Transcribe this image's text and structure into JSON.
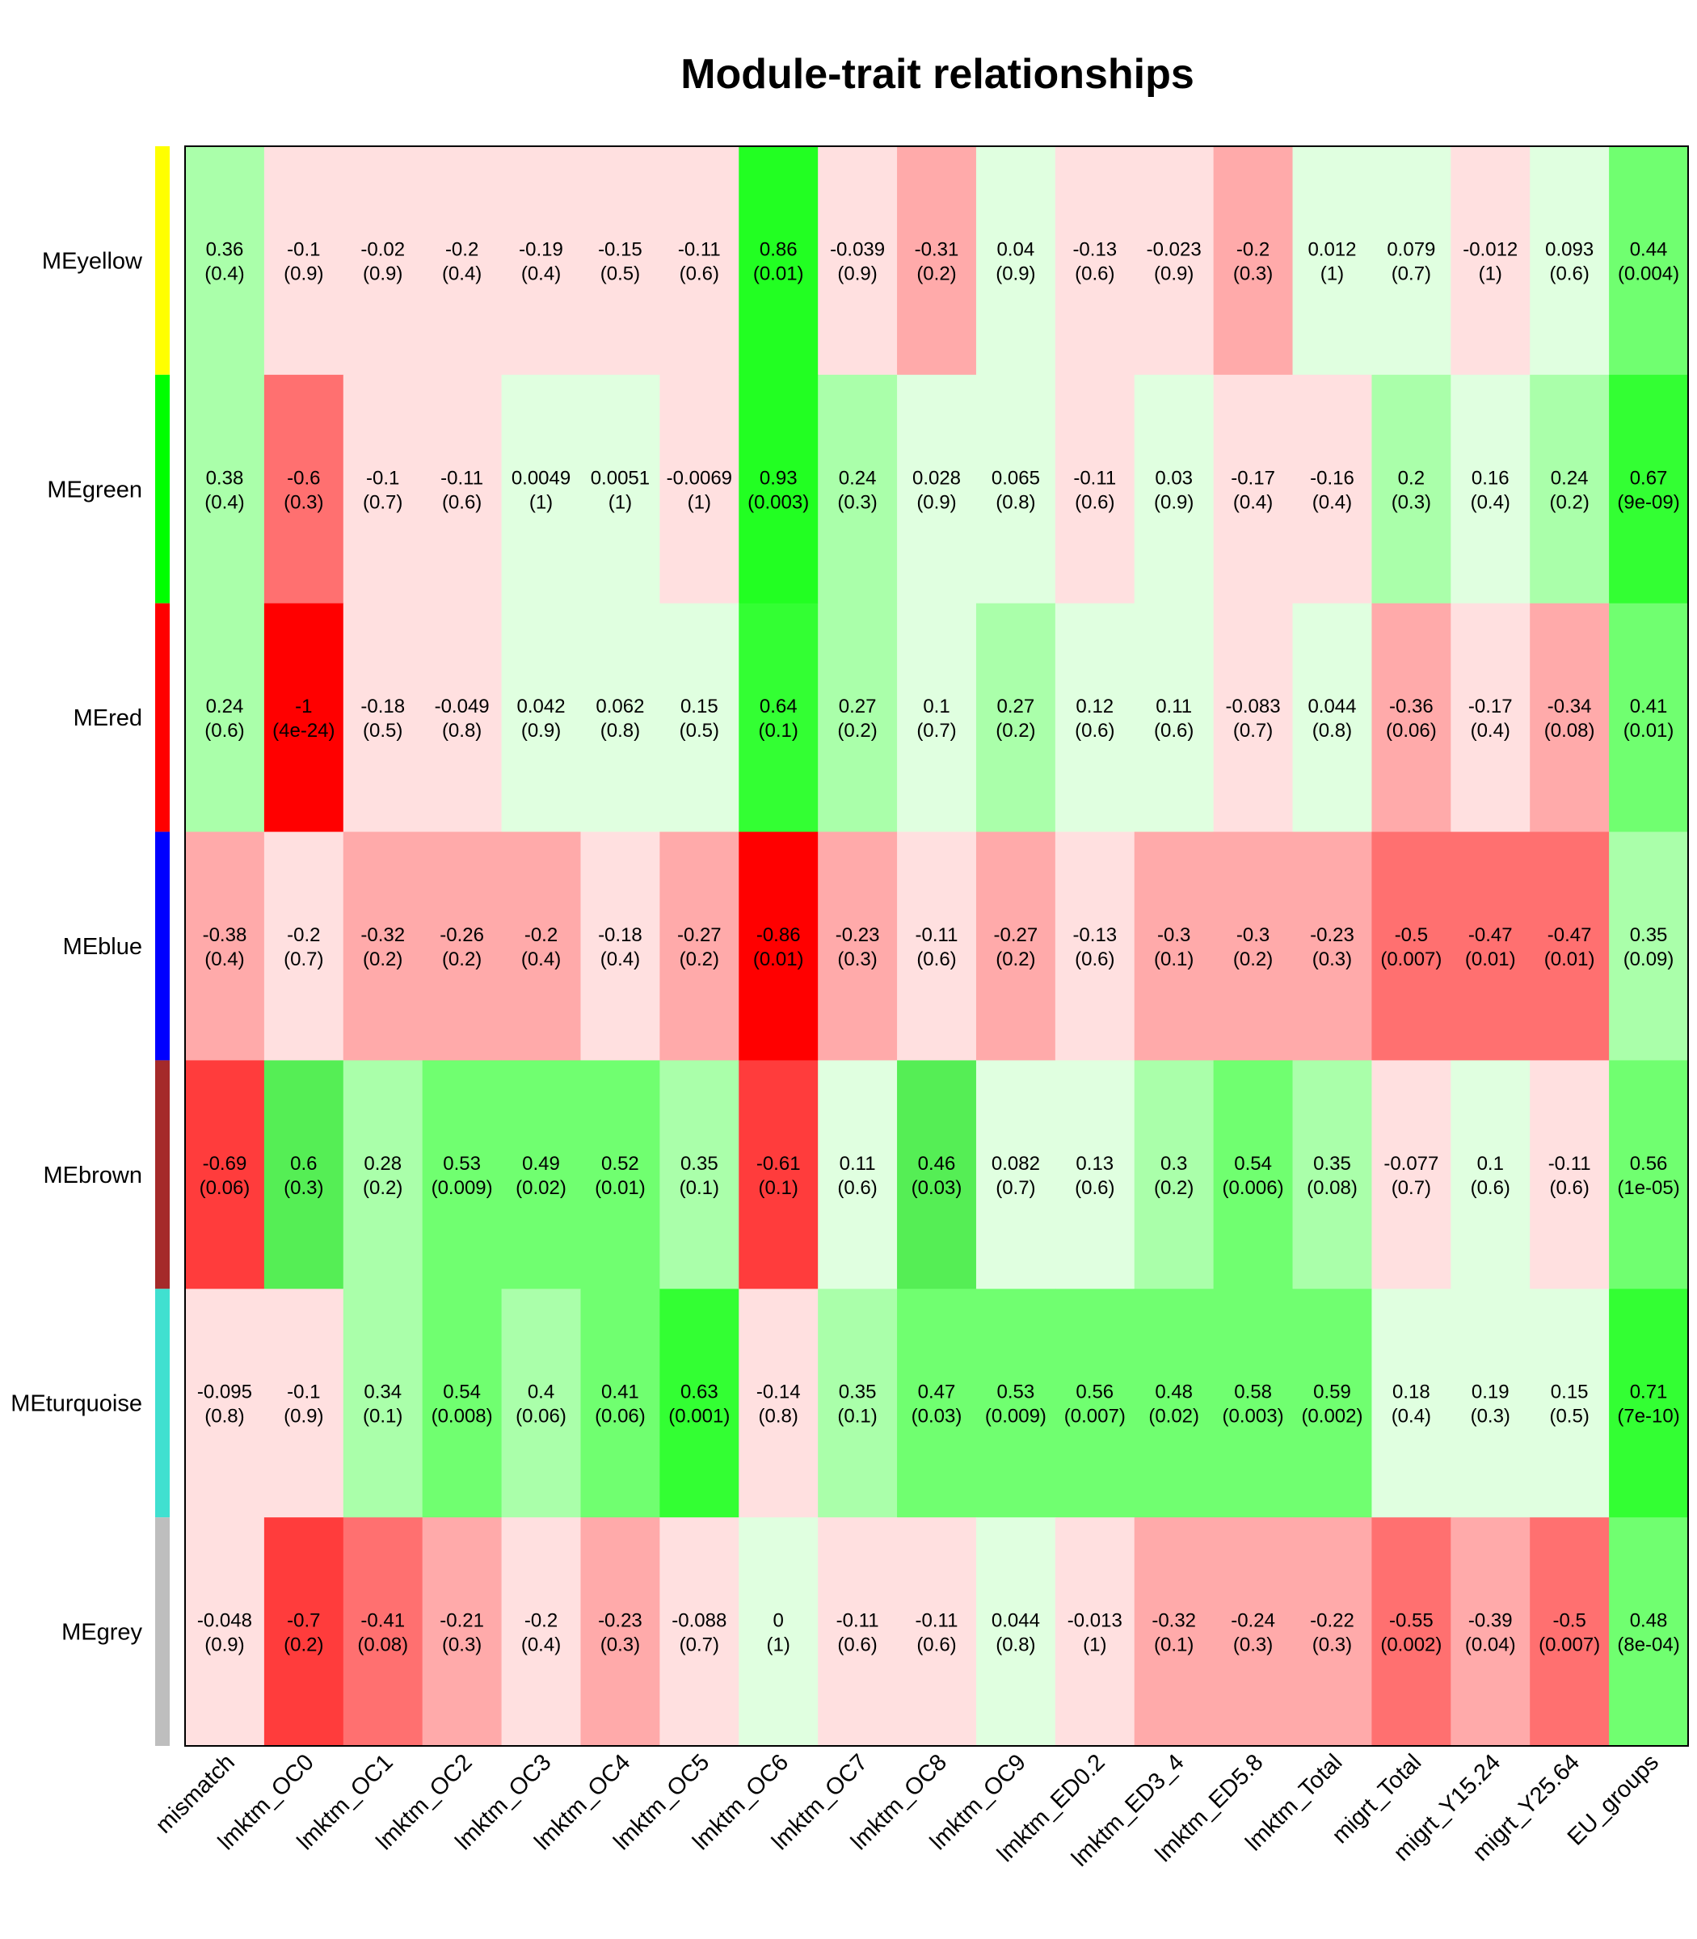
{
  "chart_data": {
    "type": "heatmap",
    "title": "Module-trait relationships",
    "xlabel": "",
    "ylabel": "",
    "columns": [
      "mismatch",
      "lmktm_OC0",
      "lmktm_OC1",
      "lmktm_OC2",
      "lmktm_OC3",
      "lmktm_OC4",
      "lmktm_OC5",
      "lmktm_OC6",
      "lmktm_OC7",
      "lmktm_OC8",
      "lmktm_OC9",
      "lmktm_ED0.2",
      "lmktm_ED3_4",
      "lmktm_ED5.8",
      "lmktm_Total",
      "migrt_Total",
      "migrt_Y15.24",
      "migrt_Y25.64",
      "EU_groups"
    ],
    "rows": [
      {
        "name": "MEyellow",
        "module_color": "#ffff00",
        "values": [
          "0.36",
          "-0.1",
          "-0.02",
          "-0.2",
          "-0.19",
          "-0.15",
          "-0.11",
          "0.86",
          "-0.039",
          "-0.31",
          "0.04",
          "-0.13",
          "-0.023",
          "-0.2",
          "0.012",
          "0.079",
          "-0.012",
          "0.093",
          "0.44"
        ],
        "pvalues": [
          "(0.4)",
          "(0.9)",
          "(0.9)",
          "(0.4)",
          "(0.4)",
          "(0.5)",
          "(0.6)",
          "(0.01)",
          "(0.9)",
          "(0.2)",
          "(0.9)",
          "(0.6)",
          "(0.9)",
          "(0.3)",
          "(1)",
          "(0.7)",
          "(1)",
          "(0.6)",
          "(0.004)"
        ],
        "fills": [
          "#aaffaa",
          "#ffe0e0",
          "#ffe0e0",
          "#ffe0e0",
          "#ffe0e0",
          "#ffe0e0",
          "#ffe0e0",
          "#22ff22",
          "#ffe0e0",
          "#ffaaaa",
          "#e0ffe0",
          "#ffe0e0",
          "#ffe0e0",
          "#ffaaaa",
          "#e0ffe0",
          "#e0ffe0",
          "#ffe0e0",
          "#e0ffe0",
          "#70ff70"
        ]
      },
      {
        "name": "MEgreen",
        "module_color": "#00ff00",
        "values": [
          "0.38",
          "-0.6",
          "-0.1",
          "-0.11",
          "0.0049",
          "0.0051",
          "-0.0069",
          "0.93",
          "0.24",
          "0.028",
          "0.065",
          "-0.11",
          "0.03",
          "-0.17",
          "-0.16",
          "0.2",
          "0.16",
          "0.24",
          "0.67"
        ],
        "pvalues": [
          "(0.4)",
          "(0.3)",
          "(0.7)",
          "(0.6)",
          "(1)",
          "(1)",
          "(1)",
          "(0.003)",
          "(0.3)",
          "(0.9)",
          "(0.8)",
          "(0.6)",
          "(0.9)",
          "(0.4)",
          "(0.4)",
          "(0.3)",
          "(0.4)",
          "(0.2)",
          "(9e-09)"
        ],
        "fills": [
          "#aaffaa",
          "#ff7070",
          "#ffe0e0",
          "#ffe0e0",
          "#e0ffe0",
          "#e0ffe0",
          "#ffe0e0",
          "#22ff22",
          "#aaffaa",
          "#e0ffe0",
          "#e0ffe0",
          "#ffe0e0",
          "#e0ffe0",
          "#ffe0e0",
          "#ffe0e0",
          "#aaffaa",
          "#e0ffe0",
          "#aaffaa",
          "#33ff33"
        ]
      },
      {
        "name": "MEred",
        "module_color": "#ff0000",
        "values": [
          "0.24",
          "-1",
          "-0.18",
          "-0.049",
          "0.042",
          "0.062",
          "0.15",
          "0.64",
          "0.27",
          "0.1",
          "0.27",
          "0.12",
          "0.11",
          "-0.083",
          "0.044",
          "-0.36",
          "-0.17",
          "-0.34",
          "0.41"
        ],
        "pvalues": [
          "(0.6)",
          "(4e-24)",
          "(0.5)",
          "(0.8)",
          "(0.9)",
          "(0.8)",
          "(0.5)",
          "(0.1)",
          "(0.2)",
          "(0.7)",
          "(0.2)",
          "(0.6)",
          "(0.6)",
          "(0.7)",
          "(0.8)",
          "(0.06)",
          "(0.4)",
          "(0.08)",
          "(0.01)"
        ],
        "fills": [
          "#aaffaa",
          "#ff0000",
          "#ffe0e0",
          "#ffe0e0",
          "#e0ffe0",
          "#e0ffe0",
          "#e0ffe0",
          "#33ff33",
          "#aaffaa",
          "#e0ffe0",
          "#aaffaa",
          "#e0ffe0",
          "#e0ffe0",
          "#ffe0e0",
          "#e0ffe0",
          "#ffaaaa",
          "#ffe0e0",
          "#ffaaaa",
          "#70ff70"
        ]
      },
      {
        "name": "MEblue",
        "module_color": "#0000ff",
        "values": [
          "-0.38",
          "-0.2",
          "-0.32",
          "-0.26",
          "-0.2",
          "-0.18",
          "-0.27",
          "-0.86",
          "-0.23",
          "-0.11",
          "-0.27",
          "-0.13",
          "-0.3",
          "-0.3",
          "-0.23",
          "-0.5",
          "-0.47",
          "-0.47",
          "0.35"
        ],
        "pvalues": [
          "(0.4)",
          "(0.7)",
          "(0.2)",
          "(0.2)",
          "(0.4)",
          "(0.4)",
          "(0.2)",
          "(0.01)",
          "(0.3)",
          "(0.6)",
          "(0.2)",
          "(0.6)",
          "(0.1)",
          "(0.2)",
          "(0.3)",
          "(0.007)",
          "(0.01)",
          "(0.01)",
          "(0.09)"
        ],
        "fills": [
          "#ffaaaa",
          "#ffe0e0",
          "#ffaaaa",
          "#ffaaaa",
          "#ffaaaa",
          "#ffe0e0",
          "#ffaaaa",
          "#ff0000",
          "#ffaaaa",
          "#ffe0e0",
          "#ffaaaa",
          "#ffe0e0",
          "#ffaaaa",
          "#ffaaaa",
          "#ffaaaa",
          "#ff7070",
          "#ff7070",
          "#ff7070",
          "#aaffaa"
        ]
      },
      {
        "name": "MEbrown",
        "module_color": "#a52a2a",
        "values": [
          "-0.69",
          "0.6",
          "0.28",
          "0.53",
          "0.49",
          "0.52",
          "0.35",
          "-0.61",
          "0.11",
          "0.46",
          "0.082",
          "0.13",
          "0.3",
          "0.54",
          "0.35",
          "-0.077",
          "0.1",
          "-0.11",
          "0.56"
        ],
        "pvalues": [
          "(0.06)",
          "(0.3)",
          "(0.2)",
          "(0.009)",
          "(0.02)",
          "(0.01)",
          "(0.1)",
          "(0.1)",
          "(0.6)",
          "(0.03)",
          "(0.7)",
          "(0.6)",
          "(0.2)",
          "(0.006)",
          "(0.08)",
          "(0.7)",
          "(0.6)",
          "(0.6)",
          "(1e-05)"
        ],
        "fills": [
          "#ff3c3c",
          "#55ee55",
          "#aaffaa",
          "#70ff70",
          "#70ff70",
          "#70ff70",
          "#aaffaa",
          "#ff3c3c",
          "#e0ffe0",
          "#55ee55",
          "#e0ffe0",
          "#e0ffe0",
          "#aaffaa",
          "#70ff70",
          "#aaffaa",
          "#ffe0e0",
          "#e0ffe0",
          "#ffe0e0",
          "#70ff70"
        ]
      },
      {
        "name": "MEturquoise",
        "module_color": "#40e0d0",
        "values": [
          "-0.095",
          "-0.1",
          "0.34",
          "0.54",
          "0.4",
          "0.41",
          "0.63",
          "-0.14",
          "0.35",
          "0.47",
          "0.53",
          "0.56",
          "0.48",
          "0.58",
          "0.59",
          "0.18",
          "0.19",
          "0.15",
          "0.71"
        ],
        "pvalues": [
          "(0.8)",
          "(0.9)",
          "(0.1)",
          "(0.008)",
          "(0.06)",
          "(0.06)",
          "(0.001)",
          "(0.8)",
          "(0.1)",
          "(0.03)",
          "(0.009)",
          "(0.007)",
          "(0.02)",
          "(0.003)",
          "(0.002)",
          "(0.4)",
          "(0.3)",
          "(0.5)",
          "(7e-10)"
        ],
        "fills": [
          "#ffe0e0",
          "#ffe0e0",
          "#aaffaa",
          "#70ff70",
          "#aaffaa",
          "#70ff70",
          "#33ff33",
          "#ffe0e0",
          "#aaffaa",
          "#70ff70",
          "#70ff70",
          "#70ff70",
          "#70ff70",
          "#70ff70",
          "#70ff70",
          "#e0ffe0",
          "#e0ffe0",
          "#e0ffe0",
          "#33ff33"
        ]
      },
      {
        "name": "MEgrey",
        "module_color": "#bebebe",
        "values": [
          "-0.048",
          "-0.7",
          "-0.41",
          "-0.21",
          "-0.2",
          "-0.23",
          "-0.088",
          "0",
          "-0.11",
          "-0.11",
          "0.044",
          "-0.013",
          "-0.32",
          "-0.24",
          "-0.22",
          "-0.55",
          "-0.39",
          "-0.5",
          "0.48"
        ],
        "pvalues": [
          "(0.9)",
          "(0.2)",
          "(0.08)",
          "(0.3)",
          "(0.4)",
          "(0.3)",
          "(0.7)",
          "(1)",
          "(0.6)",
          "(0.6)",
          "(0.8)",
          "(1)",
          "(0.1)",
          "(0.3)",
          "(0.3)",
          "(0.002)",
          "(0.04)",
          "(0.007)",
          "(8e-04)"
        ],
        "fills": [
          "#ffe0e0",
          "#ff3c3c",
          "#ff7070",
          "#ffaaaa",
          "#ffe0e0",
          "#ffaaaa",
          "#ffe0e0",
          "#e0ffe0",
          "#ffe0e0",
          "#ffe0e0",
          "#e0ffe0",
          "#ffe0e0",
          "#ffaaaa",
          "#ffaaaa",
          "#ffaaaa",
          "#ff7070",
          "#ffaaaa",
          "#ff7070",
          "#70ff70"
        ]
      }
    ],
    "grid": false,
    "legend": "none"
  }
}
